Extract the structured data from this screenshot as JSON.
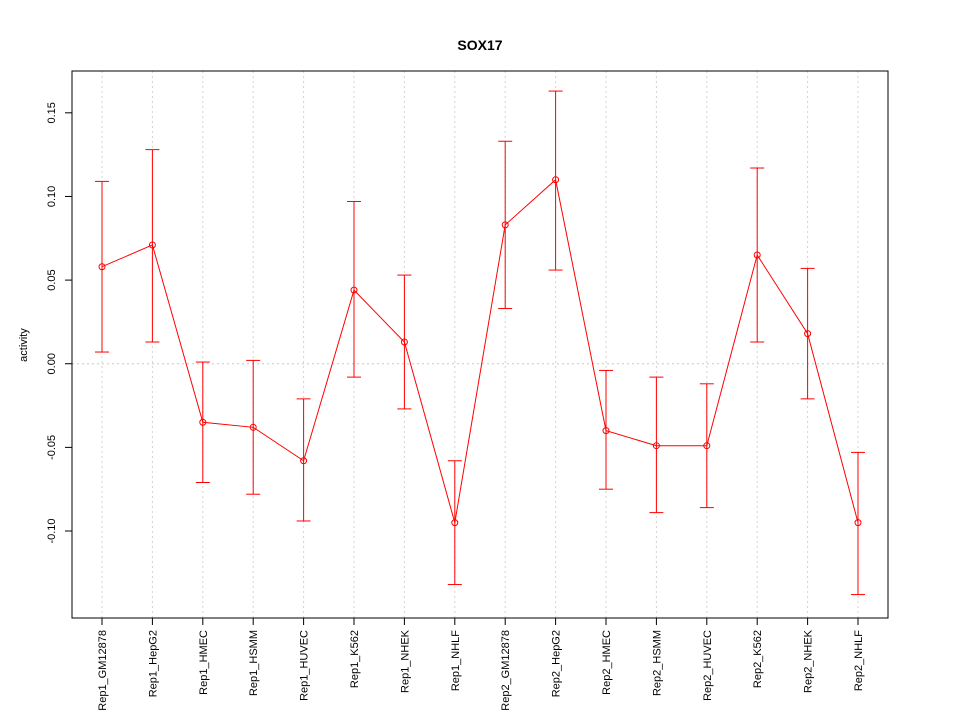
{
  "chart_data": {
    "type": "line",
    "title": "SOX17",
    "xlabel": "",
    "ylabel": "activity",
    "categories": [
      "Rep1_GM12878",
      "Rep1_HepG2",
      "Rep1_HMEC",
      "Rep1_HSMM",
      "Rep1_HUVEC",
      "Rep1_K562",
      "Rep1_NHEK",
      "Rep1_NHLF",
      "Rep2_GM12878",
      "Rep2_HepG2",
      "Rep2_HMEC",
      "Rep2_HSMM",
      "Rep2_HUVEC",
      "Rep2_K562",
      "Rep2_NHEK",
      "Rep2_NHLF"
    ],
    "series": [
      {
        "values": [
          0.058,
          0.071,
          -0.035,
          -0.038,
          -0.058,
          0.044,
          0.013,
          -0.095,
          0.083,
          0.11,
          -0.04,
          -0.049,
          -0.049,
          0.065,
          0.018,
          -0.095
        ],
        "lower": [
          0.007,
          0.013,
          -0.071,
          -0.078,
          -0.094,
          -0.008,
          -0.027,
          -0.132,
          0.033,
          0.056,
          -0.075,
          -0.089,
          -0.086,
          0.013,
          -0.021,
          -0.138
        ],
        "upper": [
          0.109,
          0.128,
          0.001,
          0.002,
          -0.021,
          0.097,
          0.053,
          -0.058,
          0.133,
          0.163,
          -0.004,
          -0.008,
          -0.012,
          0.117,
          0.057,
          -0.053
        ]
      }
    ],
    "yticks": [
      -0.1,
      -0.05,
      0.0,
      0.05,
      0.1,
      0.15
    ],
    "ytick_labels": [
      "-0.10",
      "-0.05",
      "0.00",
      "0.05",
      "0.10",
      "0.15"
    ],
    "ylim": [
      -0.152,
      0.175
    ],
    "grid": true,
    "color": "#ff0000"
  }
}
